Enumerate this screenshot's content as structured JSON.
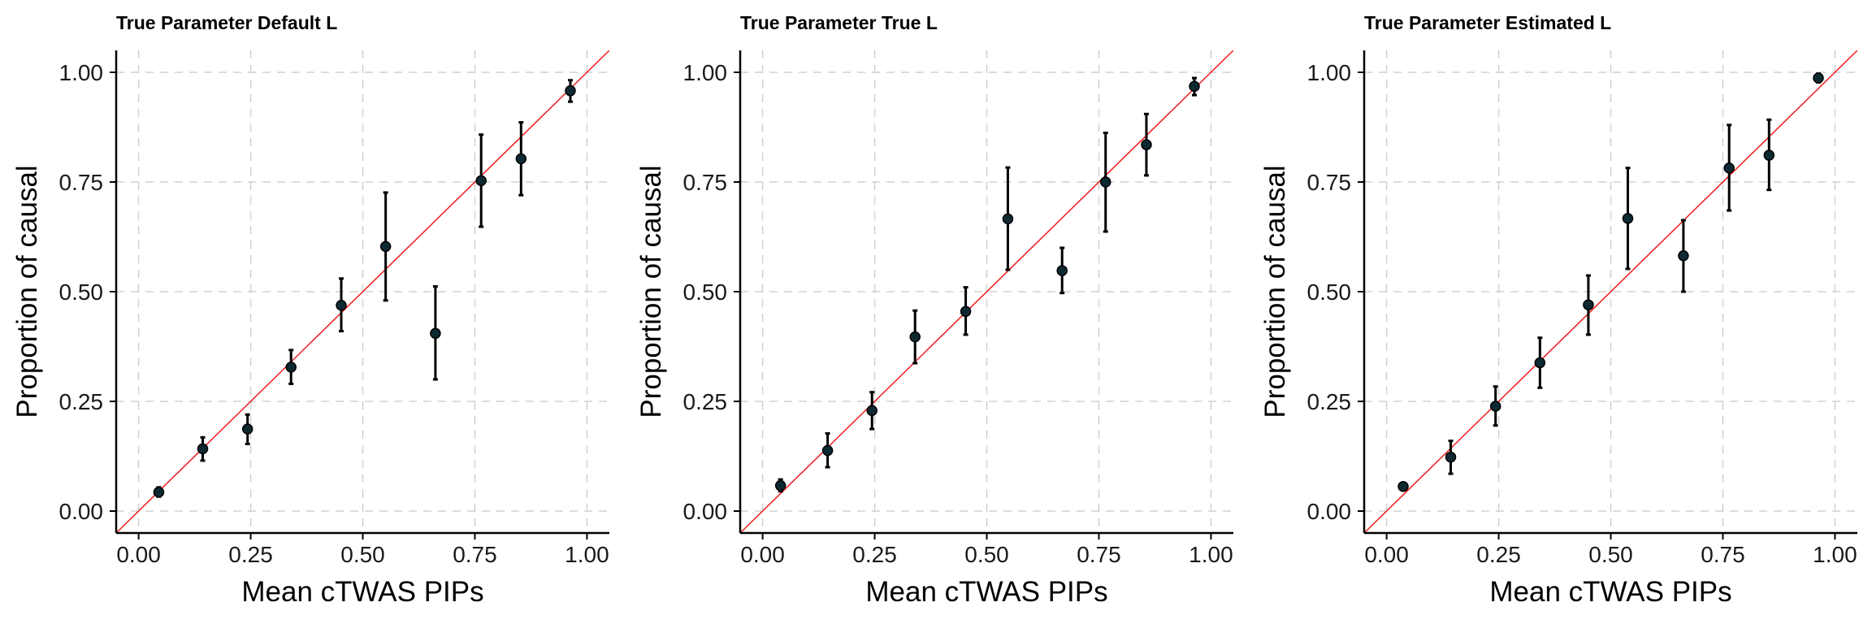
{
  "colors": {
    "point": "#0d2a33",
    "diagonal": "#ee1c1c",
    "error_bar": "#000000"
  },
  "chart_data": [
    {
      "type": "scatter",
      "title": "True Parameter Default L",
      "xlabel": "Mean cTWAS PIPs",
      "ylabel": "Proportion of causal",
      "xlim": [
        -0.05,
        1.05
      ],
      "ylim": [
        -0.05,
        1.05
      ],
      "xticks": [
        0,
        0.25,
        0.5,
        0.75,
        1
      ],
      "yticks": [
        0,
        0.25,
        0.5,
        0.75,
        1
      ],
      "xtick_labels": [
        "0.00",
        "0.25",
        "0.50",
        "0.75",
        "1.00"
      ],
      "ytick_labels": [
        "0.00",
        "0.25",
        "0.50",
        "0.75",
        "1.00"
      ],
      "grid": true,
      "reference_line": "y = x",
      "points": [
        {
          "x": 0.045,
          "y": 0.043,
          "lower": 0.033,
          "upper": 0.054
        },
        {
          "x": 0.143,
          "y": 0.142,
          "lower": 0.115,
          "upper": 0.168
        },
        {
          "x": 0.243,
          "y": 0.187,
          "lower": 0.153,
          "upper": 0.22
        },
        {
          "x": 0.34,
          "y": 0.328,
          "lower": 0.29,
          "upper": 0.367
        },
        {
          "x": 0.452,
          "y": 0.469,
          "lower": 0.41,
          "upper": 0.53
        },
        {
          "x": 0.551,
          "y": 0.603,
          "lower": 0.48,
          "upper": 0.726
        },
        {
          "x": 0.662,
          "y": 0.405,
          "lower": 0.3,
          "upper": 0.512
        },
        {
          "x": 0.764,
          "y": 0.753,
          "lower": 0.648,
          "upper": 0.858
        },
        {
          "x": 0.853,
          "y": 0.803,
          "lower": 0.72,
          "upper": 0.886
        },
        {
          "x": 0.963,
          "y": 0.958,
          "lower": 0.933,
          "upper": 0.982
        }
      ]
    },
    {
      "type": "scatter",
      "title": "True Parameter True L",
      "xlabel": "Mean cTWAS PIPs",
      "ylabel": "Proportion of causal",
      "xlim": [
        -0.05,
        1.05
      ],
      "ylim": [
        -0.05,
        1.05
      ],
      "xticks": [
        0,
        0.25,
        0.5,
        0.75,
        1
      ],
      "yticks": [
        0,
        0.25,
        0.5,
        0.75,
        1
      ],
      "xtick_labels": [
        "0.00",
        "0.25",
        "0.50",
        "0.75",
        "1.00"
      ],
      "ytick_labels": [
        "0.00",
        "0.25",
        "0.50",
        "0.75",
        "1.00"
      ],
      "grid": true,
      "reference_line": "y = x",
      "points": [
        {
          "x": 0.04,
          "y": 0.058,
          "lower": 0.045,
          "upper": 0.072
        },
        {
          "x": 0.145,
          "y": 0.138,
          "lower": 0.1,
          "upper": 0.177
        },
        {
          "x": 0.244,
          "y": 0.229,
          "lower": 0.187,
          "upper": 0.271
        },
        {
          "x": 0.34,
          "y": 0.397,
          "lower": 0.337,
          "upper": 0.457
        },
        {
          "x": 0.453,
          "y": 0.455,
          "lower": 0.402,
          "upper": 0.51
        },
        {
          "x": 0.547,
          "y": 0.666,
          "lower": 0.55,
          "upper": 0.783
        },
        {
          "x": 0.668,
          "y": 0.548,
          "lower": 0.497,
          "upper": 0.6
        },
        {
          "x": 0.765,
          "y": 0.75,
          "lower": 0.637,
          "upper": 0.862
        },
        {
          "x": 0.856,
          "y": 0.835,
          "lower": 0.765,
          "upper": 0.905
        },
        {
          "x": 0.963,
          "y": 0.968,
          "lower": 0.948,
          "upper": 0.987
        }
      ]
    },
    {
      "type": "scatter",
      "title": "True Parameter Estimated L",
      "xlabel": "Mean cTWAS PIPs",
      "ylabel": "Proportion of causal",
      "xlim": [
        -0.05,
        1.05
      ],
      "ylim": [
        -0.05,
        1.05
      ],
      "xticks": [
        0,
        0.25,
        0.5,
        0.75,
        1
      ],
      "yticks": [
        0,
        0.25,
        0.5,
        0.75,
        1
      ],
      "xtick_labels": [
        "0.00",
        "0.25",
        "0.50",
        "0.75",
        "1.00"
      ],
      "ytick_labels": [
        "0.00",
        "0.25",
        "0.50",
        "0.75",
        "1.00"
      ],
      "grid": true,
      "reference_line": "y = x",
      "points": [
        {
          "x": 0.037,
          "y": 0.056,
          "lower": 0.051,
          "upper": 0.061
        },
        {
          "x": 0.143,
          "y": 0.123,
          "lower": 0.085,
          "upper": 0.16
        },
        {
          "x": 0.243,
          "y": 0.239,
          "lower": 0.195,
          "upper": 0.284
        },
        {
          "x": 0.342,
          "y": 0.338,
          "lower": 0.281,
          "upper": 0.395
        },
        {
          "x": 0.45,
          "y": 0.47,
          "lower": 0.402,
          "upper": 0.537
        },
        {
          "x": 0.538,
          "y": 0.667,
          "lower": 0.552,
          "upper": 0.782
        },
        {
          "x": 0.662,
          "y": 0.582,
          "lower": 0.5,
          "upper": 0.663
        },
        {
          "x": 0.764,
          "y": 0.782,
          "lower": 0.685,
          "upper": 0.88
        },
        {
          "x": 0.853,
          "y": 0.811,
          "lower": 0.732,
          "upper": 0.892
        },
        {
          "x": 0.963,
          "y": 0.987,
          "lower": 0.977,
          "upper": 0.997
        }
      ]
    }
  ]
}
